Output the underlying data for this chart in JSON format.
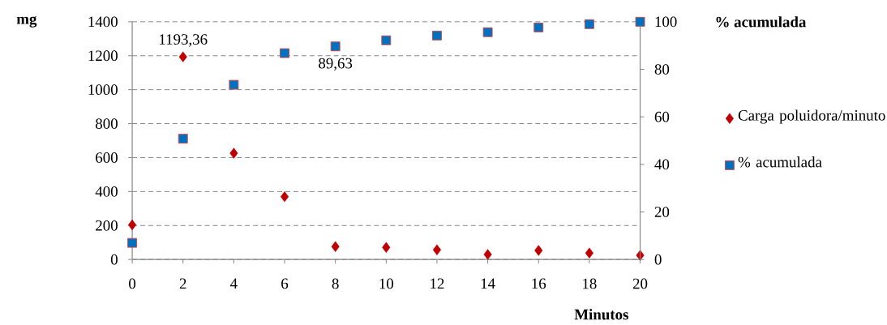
{
  "chart_data": {
    "type": "scatter",
    "xlabel": "Minutos",
    "ylabel": "mg",
    "y2label": "% acumulada",
    "x": [
      0,
      2,
      4,
      6,
      8,
      10,
      12,
      14,
      16,
      18,
      20
    ],
    "xlim": [
      0,
      20
    ],
    "xticks": [
      0,
      2,
      4,
      6,
      8,
      10,
      12,
      14,
      16,
      18,
      20
    ],
    "ylim": [
      0,
      1400
    ],
    "yticks": [
      0,
      200,
      400,
      600,
      800,
      1000,
      1200,
      1400
    ],
    "y2lim": [
      0,
      100
    ],
    "y2ticks": [
      0,
      20,
      40,
      60,
      80,
      100
    ],
    "grid": "y",
    "legend": "right",
    "series": [
      {
        "name": "Carga poluidora/minuto",
        "color": "#c00000",
        "marker": "diamond",
        "values": [
          204,
          1193.36,
          626,
          370,
          76,
          71,
          57,
          30,
          53,
          38,
          25
        ],
        "value_labels": [
          null,
          "1193,36",
          null,
          null,
          null,
          null,
          null,
          null,
          null,
          null,
          null
        ]
      },
      {
        "name": "% acumulada",
        "color": "#0070c0",
        "marker": "square",
        "axis": "y2",
        "values": [
          7,
          50.8,
          73.5,
          86.8,
          89.63,
          92.2,
          94.2,
          95.6,
          97.6,
          99,
          100
        ],
        "value_labels": [
          null,
          null,
          null,
          null,
          "89,63",
          null,
          null,
          null,
          null,
          null,
          null
        ]
      }
    ]
  }
}
